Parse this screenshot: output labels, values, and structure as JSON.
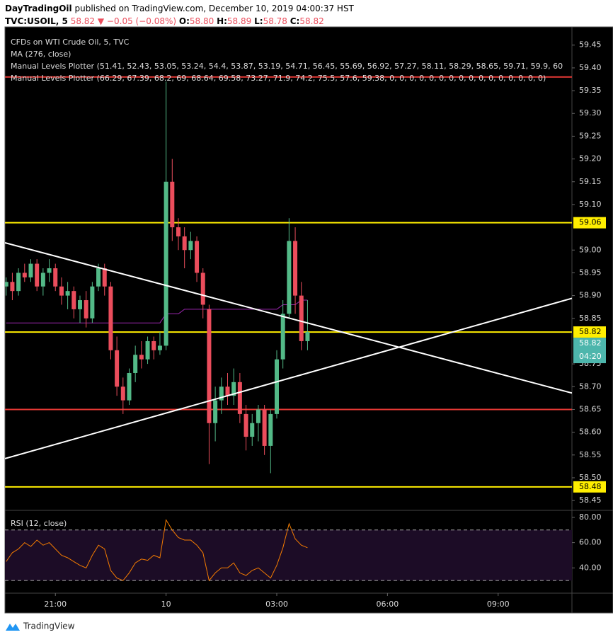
{
  "header": {
    "author": "DayTradingOil",
    "published": "published on TradingView.com, December 10, 2019 04:00:37 HST",
    "symbol": "TVC:USOIL, 5",
    "price": "58.82",
    "change": "▼ −0.05 (−0.08%)",
    "ohlc": [
      {
        "key": "O:",
        "value": "58.80"
      },
      {
        "key": "H:",
        "value": "58.89"
      },
      {
        "key": "L:",
        "value": "58.78"
      },
      {
        "key": "C:",
        "value": "58.82"
      }
    ]
  },
  "footer": {
    "brand": "TradingView"
  },
  "chart_data": {
    "type": "candlestick",
    "title": "CFDs on WTI Crude Oil, 5, TVC",
    "x": [
      "19:40",
      "19:50",
      "20:00",
      "20:10",
      "20:20",
      "20:30",
      "20:40",
      "20:50",
      "21:00",
      "21:10",
      "21:20",
      "21:30",
      "21:40",
      "21:50",
      "22:00",
      "22:10",
      "22:20",
      "22:30",
      "22:40",
      "22:50",
      "23:00",
      "23:10",
      "23:20",
      "23:30",
      "23:40",
      "23:50",
      "00:00",
      "00:10",
      "00:20",
      "00:30",
      "00:40",
      "00:50",
      "01:00",
      "01:10",
      "01:20",
      "01:30",
      "01:40",
      "01:50",
      "02:00",
      "02:10",
      "02:20",
      "02:30",
      "02:40",
      "02:50",
      "03:00",
      "03:10",
      "03:20",
      "03:30",
      "03:40",
      "03:50"
    ],
    "open": [
      58.92,
      58.93,
      58.91,
      58.95,
      58.94,
      58.97,
      58.92,
      58.95,
      58.96,
      58.92,
      58.9,
      58.91,
      58.87,
      58.89,
      58.85,
      58.92,
      58.96,
      58.92,
      58.78,
      58.7,
      58.67,
      58.73,
      58.77,
      58.76,
      58.8,
      58.78,
      58.79,
      59.15,
      59.05,
      59.03,
      59.0,
      59.02,
      58.95,
      58.87,
      58.62,
      58.67,
      58.7,
      58.68,
      58.71,
      58.64,
      58.59,
      58.62,
      58.65,
      58.57,
      58.64,
      58.76,
      58.86,
      59.02,
      58.9,
      58.8
    ],
    "high": [
      58.94,
      58.95,
      58.96,
      58.97,
      58.98,
      58.98,
      58.96,
      58.98,
      58.97,
      58.94,
      58.93,
      58.92,
      58.9,
      58.91,
      58.93,
      58.97,
      58.97,
      58.93,
      58.81,
      58.72,
      58.74,
      58.79,
      58.8,
      58.81,
      58.81,
      58.82,
      59.37,
      59.2,
      59.07,
      59.05,
      59.04,
      59.03,
      58.96,
      58.88,
      58.7,
      58.72,
      58.73,
      58.74,
      58.73,
      58.66,
      58.64,
      58.66,
      58.66,
      58.65,
      58.78,
      58.89,
      59.07,
      59.05,
      58.93,
      58.89
    ],
    "low": [
      58.9,
      58.89,
      58.9,
      58.93,
      58.93,
      58.91,
      58.9,
      58.93,
      58.91,
      58.88,
      58.87,
      58.85,
      58.84,
      58.83,
      58.84,
      58.91,
      58.9,
      58.76,
      58.68,
      58.64,
      58.66,
      58.71,
      58.74,
      58.75,
      58.76,
      58.77,
      58.78,
      59.02,
      59.0,
      58.96,
      58.98,
      58.93,
      58.85,
      58.53,
      58.58,
      58.64,
      58.66,
      58.66,
      58.62,
      58.56,
      58.57,
      58.58,
      58.55,
      58.51,
      58.63,
      58.74,
      58.85,
      58.86,
      58.78,
      58.78
    ],
    "close": [
      58.93,
      58.91,
      58.95,
      58.94,
      58.97,
      58.92,
      58.95,
      58.96,
      58.92,
      58.9,
      58.91,
      58.87,
      58.89,
      58.85,
      58.92,
      58.96,
      58.92,
      58.78,
      58.7,
      58.67,
      58.73,
      58.77,
      58.76,
      58.8,
      58.78,
      58.79,
      59.15,
      59.05,
      59.03,
      59.0,
      59.02,
      58.95,
      58.88,
      58.62,
      58.67,
      58.7,
      58.68,
      58.71,
      58.64,
      58.59,
      58.62,
      58.65,
      58.57,
      58.64,
      58.76,
      58.86,
      59.02,
      58.9,
      58.8,
      58.82
    ],
    "up_color": "#53b987",
    "down_color": "#eb4d5c",
    "ma": {
      "name": "MA (276, close)",
      "color": "#9c27b0",
      "values": [
        58.84,
        58.84,
        58.84,
        58.84,
        58.84,
        58.84,
        58.84,
        58.84,
        58.84,
        58.84,
        58.84,
        58.84,
        58.84,
        58.84,
        58.84,
        58.84,
        58.84,
        58.84,
        58.84,
        58.84,
        58.84,
        58.84,
        58.84,
        58.84,
        58.84,
        58.84,
        58.86,
        58.86,
        58.86,
        58.87,
        58.87,
        58.87,
        58.87,
        58.87,
        58.87,
        58.87,
        58.87,
        58.87,
        58.87,
        58.87,
        58.87,
        58.87,
        58.87,
        58.87,
        58.87,
        58.88,
        58.88,
        58.88,
        58.89,
        58.89
      ]
    },
    "indicators": [
      "Manual Levels Plotter (51.41, 52.43, 53.05, 53.24, 54.4, 53.87, 53.19, 54.71, 56.45, 55.69, 56.92, 57.27, 58.11, 58.29, 58.65, 59.71, 59.9, 60",
      "Manual Levels Plotter (66.29, 67.39, 68.2, 69, 68.64, 69.58, 73.27, 71.9, 74.2, 75.5, 57.6, 59.38, 0, 0, 0, 0, 0, 0, 0, 0, 0, 0, 0, 0, 0, 0, 0, 0)"
    ],
    "levels": [
      {
        "value": 59.38,
        "color": "#e53935",
        "tag": false
      },
      {
        "value": 59.06,
        "color": "#ffee00",
        "tag": true
      },
      {
        "value": 58.82,
        "color": "#ffee00",
        "tag": true
      },
      {
        "value": 58.65,
        "color": "#e53935",
        "tag": false
      },
      {
        "value": 58.48,
        "color": "#ffee00",
        "tag": true
      }
    ],
    "trendlines": [
      {
        "points": [
          [
            "19:38",
            59.016
          ],
          [
            "11:00",
            58.686
          ]
        ],
        "color": "#ffffff"
      },
      {
        "points": [
          [
            "19:38",
            58.542
          ],
          [
            "11:00",
            58.894
          ]
        ],
        "color": "#ffffff"
      }
    ],
    "last_price": {
      "value": 58.82,
      "color": "#4db6ac"
    },
    "countdown": "04:20",
    "xlim": [
      "19:38",
      "11:00"
    ],
    "xticks": [
      "21:00",
      {
        "value": "00:00",
        "label": "10"
      },
      "03:00",
      "06:00",
      "09:00"
    ],
    "ylim": [
      58.43,
      59.49
    ],
    "yticks": [
      {
        "value": 58.45,
        "label": "58.45"
      },
      {
        "value": 58.5,
        "label": "58.50"
      },
      {
        "value": 58.55,
        "label": "58.55"
      },
      {
        "value": 58.6,
        "label": "58.60"
      },
      {
        "value": 58.65,
        "label": "58.65"
      },
      {
        "value": 58.7,
        "label": "58.70"
      },
      {
        "value": 58.75,
        "label": "58.75"
      },
      {
        "value": 58.85,
        "label": "58.85"
      },
      {
        "value": 58.9,
        "label": "58.90"
      },
      {
        "value": 58.95,
        "label": "58.95"
      },
      {
        "value": 59.0,
        "label": "59.00"
      },
      {
        "value": 59.1,
        "label": "59.10"
      },
      {
        "value": 59.15,
        "label": "59.15"
      },
      {
        "value": 59.2,
        "label": "59.20"
      },
      {
        "value": 59.25,
        "label": "59.25"
      },
      {
        "value": 59.3,
        "label": "59.30"
      },
      {
        "value": 59.35,
        "label": "59.35"
      },
      {
        "value": 59.4,
        "label": "59.40"
      },
      {
        "value": 59.45,
        "label": "59.45"
      }
    ],
    "grid": false,
    "rsi": {
      "name": "RSI (12, close)",
      "color": "#f57c00",
      "values": [
        45,
        52,
        55,
        60,
        57,
        62,
        58,
        60,
        55,
        50,
        48,
        45,
        42,
        40,
        50,
        58,
        55,
        38,
        32,
        30,
        36,
        44,
        47,
        46,
        50,
        48,
        78,
        70,
        64,
        62,
        62,
        58,
        52,
        30,
        36,
        40,
        40,
        44,
        36,
        34,
        38,
        40,
        36,
        32,
        42,
        56,
        75,
        63,
        58,
        56
      ],
      "ylim": [
        20,
        85
      ],
      "yticks": [
        {
          "value": 40,
          "label": "40.00"
        },
        {
          "value": 60,
          "label": "60.00"
        },
        {
          "value": 80,
          "label": "80.00"
        }
      ],
      "bands": [
        30,
        70
      ]
    }
  }
}
